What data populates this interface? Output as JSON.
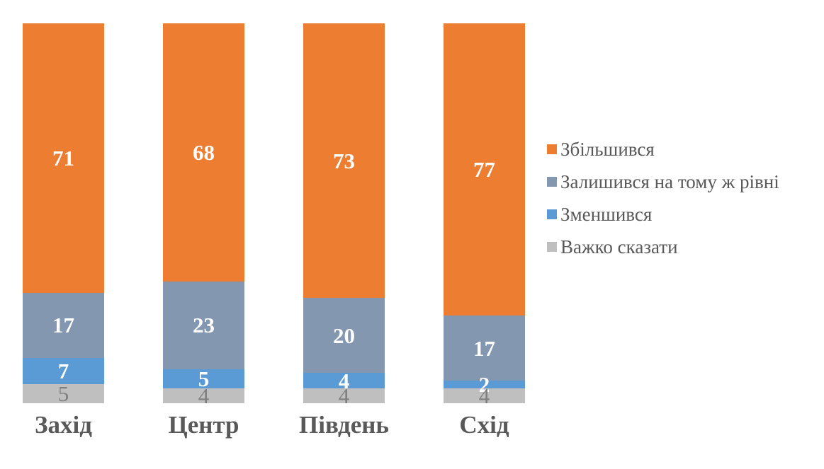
{
  "chart_data": {
    "type": "bar",
    "subtype": "stacked-100-column",
    "title": "",
    "xlabel": "",
    "ylabel": "",
    "grid": false,
    "axes_visible": false,
    "value_range": [
      0,
      100
    ],
    "legend_position": "right",
    "categories": [
      "Захід",
      "Центр",
      "Південь",
      "Схід"
    ],
    "series": [
      {
        "name": "Збільшився",
        "color": "#ED7D31",
        "label_color": "#FFFFFF",
        "values": [
          71,
          68,
          73,
          77
        ]
      },
      {
        "name": "Залишився на тому ж рівні",
        "color": "#8497B0",
        "label_color": "#FFFFFF",
        "values": [
          17,
          23,
          20,
          17
        ]
      },
      {
        "name": "Зменшився",
        "color": "#5B9BD5",
        "label_color": "#FFFFFF",
        "values": [
          7,
          5,
          4,
          2
        ]
      },
      {
        "name": "Важко сказати",
        "color": "#BFBFBF",
        "label_color": "#7F7F7F",
        "values": [
          5,
          4,
          4,
          4
        ]
      }
    ],
    "category_label_color": "#595959",
    "legend_text_color": "#595959",
    "background_color": "#FFFFFF"
  }
}
